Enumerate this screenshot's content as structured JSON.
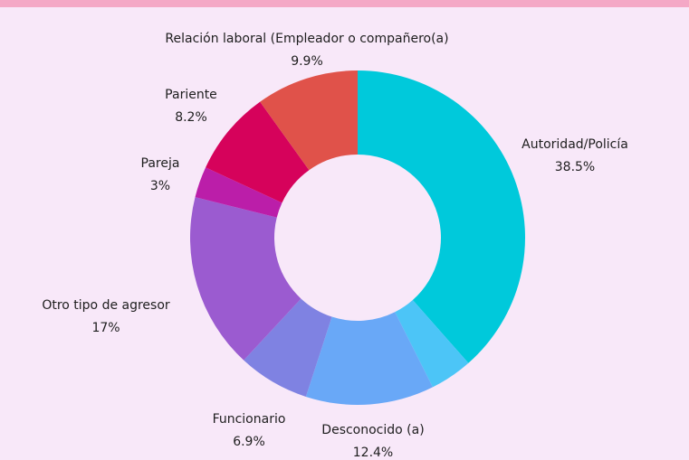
{
  "chart_data": {
    "type": "donut",
    "categories": [
      "Autoridad/Policía",
      null,
      "Desconocido (a)",
      "Funcionario",
      "Otro tipo de agresor",
      "Pareja",
      "Pariente",
      "Relación laboral (Empleador o compañero(a)"
    ],
    "values": [
      38.5,
      4.1,
      12.4,
      6.9,
      17,
      3,
      8.2,
      9.9
    ],
    "value_labels": [
      "38.5%",
      null,
      "12.4%",
      "6.9%",
      "17%",
      "3%",
      "8.2%",
      "9.9%"
    ],
    "colors": [
      "#00c9db",
      "#4cc5f7",
      "#69a8f7",
      "#7f82e2",
      "#9b5bd0",
      "#bb1ea9",
      "#d6025b",
      "#e0524a"
    ]
  }
}
